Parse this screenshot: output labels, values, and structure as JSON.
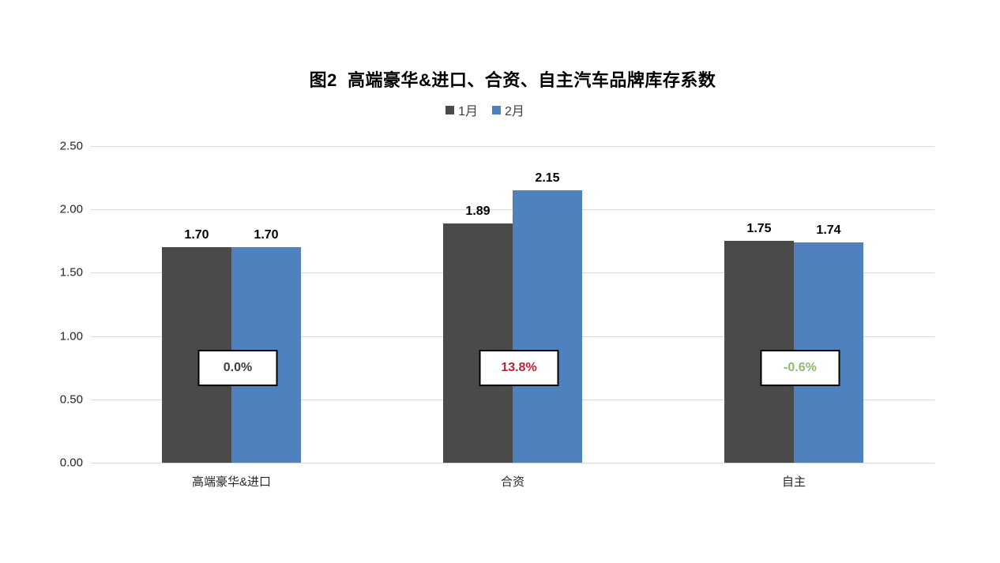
{
  "title": "图2  高端豪华&进口、合资、自主汽车品牌库存系数",
  "chart_data": {
    "type": "bar",
    "title": "图2  高端豪华&进口、合资、自主汽车品牌库存系数",
    "categories": [
      "高端豪华&进口",
      "合资",
      "自主"
    ],
    "series": [
      {
        "name": "1月",
        "color": "#4a4a4a",
        "values": [
          1.7,
          1.89,
          1.75
        ]
      },
      {
        "name": "2月",
        "color": "#4e81bd",
        "values": [
          1.7,
          2.15,
          1.74
        ]
      }
    ],
    "change_labels": [
      {
        "text": "0.0%",
        "color": "#404040"
      },
      {
        "text": "13.8%",
        "color": "#b52531"
      },
      {
        "text": "-0.6%",
        "color": "#8dbb6f"
      }
    ],
    "xlabel": "",
    "ylabel": "",
    "ylim": [
      0,
      2.5
    ],
    "yticks": [
      "0.00",
      "0.50",
      "1.00",
      "1.50",
      "2.00",
      "2.50"
    ],
    "grid": true,
    "legend_position": "top",
    "value_label_format": "2-decimals",
    "background": "#ffffff",
    "gridline_color": "#d9d9d9"
  }
}
